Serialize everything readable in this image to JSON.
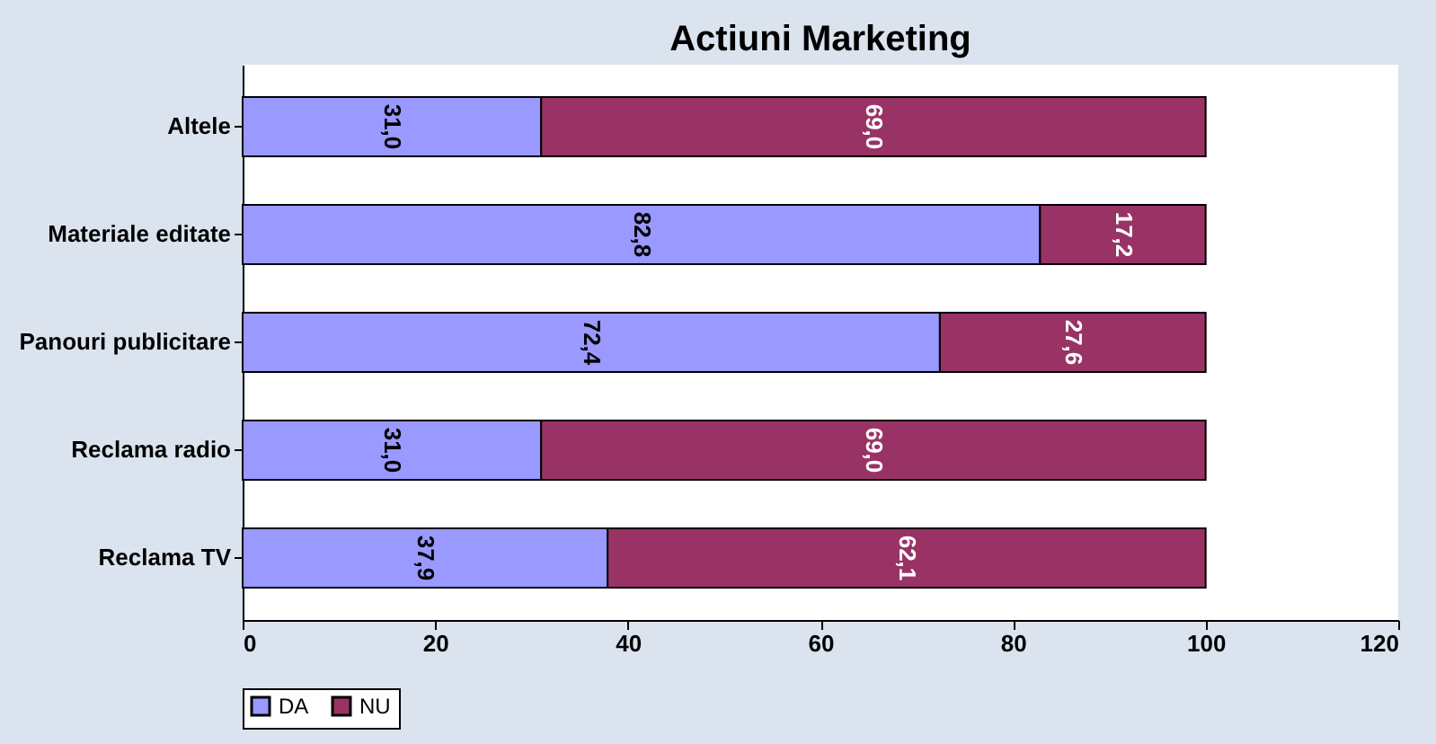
{
  "chart_data": {
    "type": "bar",
    "orientation": "horizontal",
    "stacked": true,
    "title": "Actiuni Marketing",
    "categories": [
      "Altele",
      "Materiale editate",
      "Panouri publicitare",
      "Reclama radio",
      "Reclama TV"
    ],
    "series": [
      {
        "name": "DA",
        "color": "#9999ff",
        "values": [
          31.0,
          82.8,
          72.4,
          31.0,
          37.9
        ],
        "value_labels": [
          "31,0",
          "82,8",
          "72,4",
          "31,0",
          "37,9"
        ]
      },
      {
        "name": "NU",
        "color": "#993366",
        "values": [
          69.0,
          17.2,
          27.6,
          69.0,
          62.1
        ],
        "value_labels": [
          "69,0",
          "17,2",
          "27,6",
          "69,0",
          "62,1"
        ]
      }
    ],
    "xlim": [
      0,
      120
    ],
    "xticks": [
      0,
      20,
      40,
      60,
      80,
      100,
      120
    ],
    "grid": false,
    "legend": "bottom"
  }
}
